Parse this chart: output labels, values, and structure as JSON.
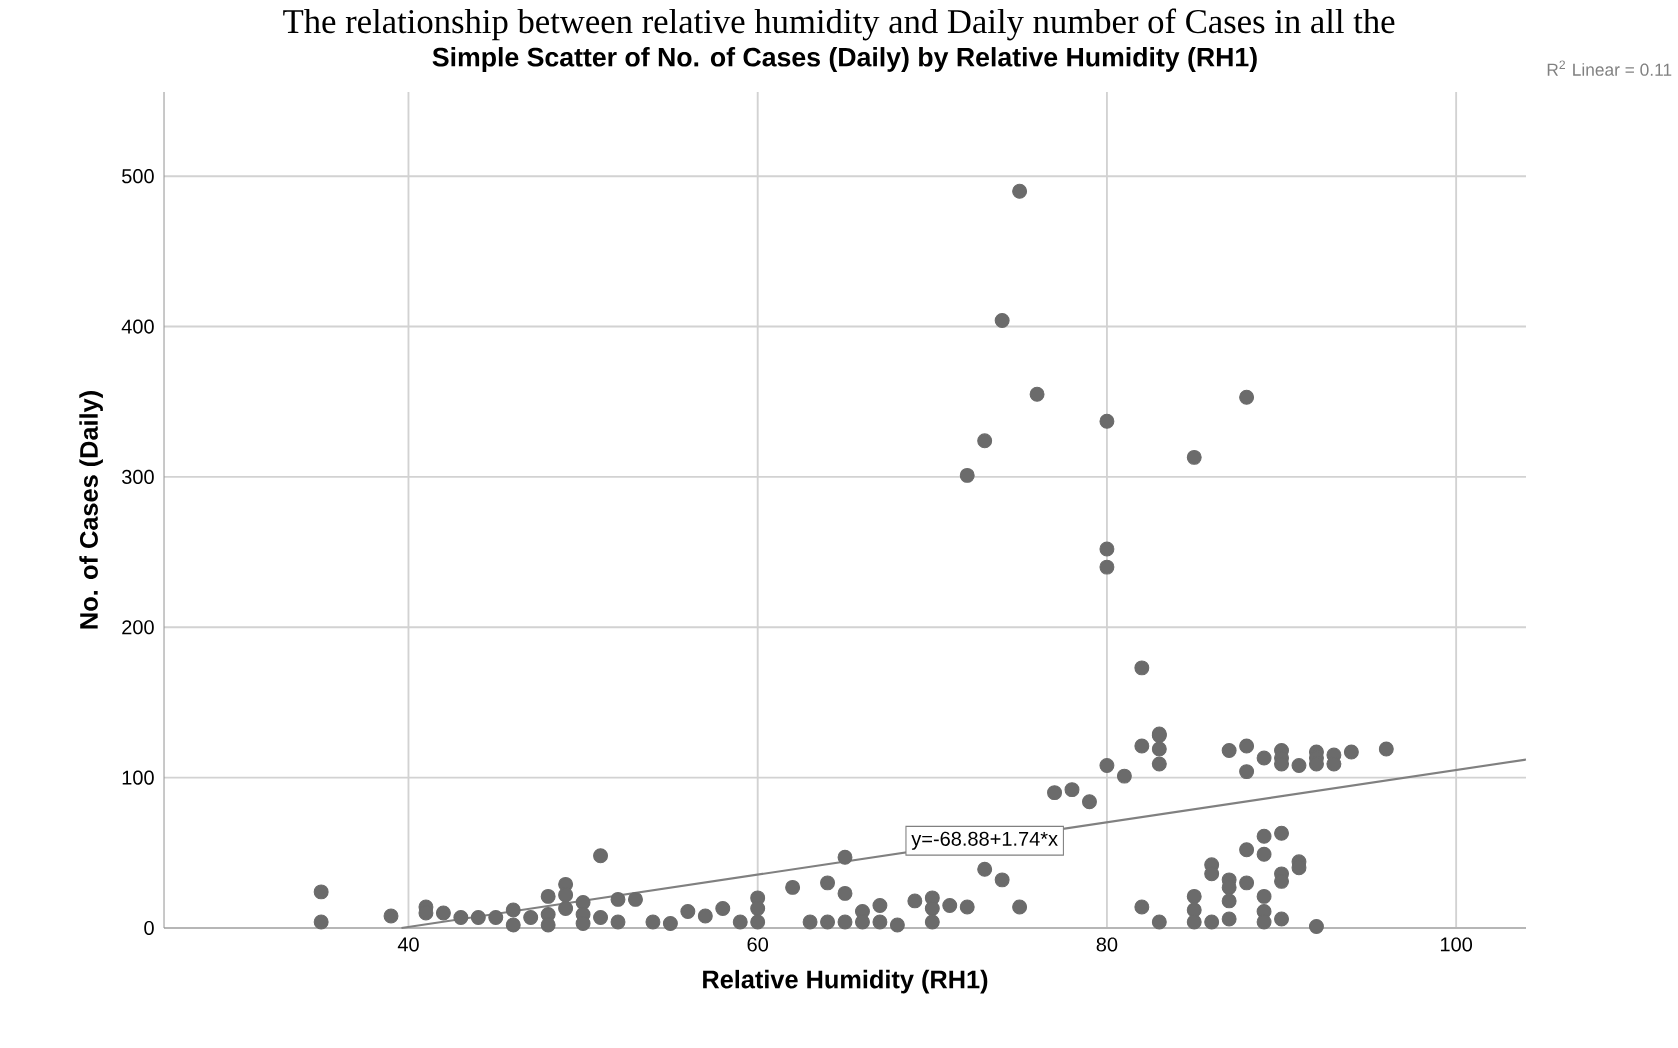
{
  "chart_data": {
    "type": "scatter",
    "title": "Simple Scatter of No. of Cases (Daily) by Relative Humidity (RH1)",
    "xlabel": "Relative Humidity (RH1)",
    "ylabel": "No. of Cases (Daily)",
    "xlim": [
      26,
      104
    ],
    "ylim": [
      0,
      556
    ],
    "xticks": [
      40,
      60,
      80,
      100
    ],
    "yticks": [
      0,
      100,
      200,
      300,
      400,
      500
    ],
    "grid": true,
    "annotations": [
      "The relationship between relative humidity and Daily number of Cases in all the",
      "R$^{2}$ Linear = 0.11",
      {
        "text": "y=-68.88+1.74*x",
        "x": 73,
        "y": 58
      }
    ],
    "series": [
      {
        "color": "#6b6b6b",
        "marker": "circle",
        "x": [
          75,
          74,
          76,
          80,
          88,
          73,
          72,
          85,
          80,
          80,
          82,
          83,
          82,
          83,
          83,
          83,
          80,
          81,
          77,
          78,
          79,
          87,
          88,
          88,
          89,
          90,
          90,
          90,
          91,
          92,
          92,
          92,
          93,
          93,
          94,
          96,
          82,
          83,
          85,
          85,
          85,
          86,
          86,
          86,
          87,
          87,
          87,
          87,
          88,
          88,
          89,
          89,
          89,
          89,
          89,
          90,
          90,
          90,
          90,
          91,
          91,
          92,
          73,
          74,
          75,
          65,
          65,
          65,
          66,
          66,
          67,
          67,
          68,
          69,
          70,
          70,
          70,
          71,
          72,
          35,
          35,
          39,
          41,
          41,
          42,
          43,
          44,
          45,
          46,
          46,
          47,
          48,
          48,
          48,
          49,
          49,
          49,
          50,
          50,
          50,
          51,
          51,
          52,
          52,
          53,
          54,
          55,
          56,
          57,
          58,
          59,
          60,
          60,
          60,
          62,
          63,
          64,
          64
        ],
        "values": [
          490,
          404,
          355,
          337,
          353,
          324,
          301,
          313,
          252,
          240,
          173,
          129,
          121,
          128,
          119,
          109,
          108,
          101,
          90,
          92,
          84,
          118,
          121,
          104,
          113,
          118,
          113,
          109,
          108,
          117,
          113,
          109,
          115,
          109,
          117,
          119,
          14,
          4,
          21,
          12,
          4,
          42,
          36,
          4,
          32,
          27,
          18,
          6,
          52,
          30,
          61,
          49,
          21,
          11,
          4,
          63,
          36,
          31,
          6,
          44,
          40,
          1,
          39,
          32,
          14,
          47,
          23,
          4,
          11,
          4,
          15,
          4,
          2,
          18,
          20,
          13,
          4,
          15,
          14,
          24,
          4,
          8,
          14,
          10,
          10,
          7,
          7,
          7,
          12,
          2,
          7,
          21,
          9,
          2,
          29,
          22,
          13,
          17,
          9,
          3,
          48,
          7,
          19,
          4,
          19,
          4,
          3,
          11,
          8,
          13,
          4,
          20,
          13,
          4,
          27,
          4,
          30,
          4
        ]
      },
      {
        "type": "line",
        "color": "#808080",
        "marker": "none",
        "x": [
          39.6,
          104
        ],
        "values": [
          0,
          112
        ]
      }
    ]
  }
}
